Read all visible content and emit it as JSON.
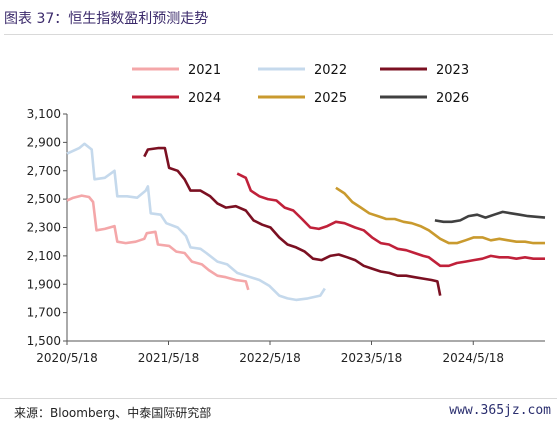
{
  "figure": {
    "title": "图表 37：恒生指数盈利预测走势",
    "source": "来源：Bloomberg、中泰国际研究部",
    "watermark": "www.365jz.com"
  },
  "colors": {
    "2021": "#f4a7a9",
    "2022": "#c5d9ec",
    "2023": "#7b1022",
    "2024": "#c0213a",
    "2025": "#c99a2e",
    "2026": "#404040"
  },
  "chart_data": {
    "type": "line",
    "title": "",
    "xlabel": "",
    "ylabel": "",
    "x_range": [
      "2020-05-18",
      "2025-01-31"
    ],
    "x_ticks": [
      "2020/5/18",
      "2021/5/18",
      "2022/5/18",
      "2023/5/18",
      "2024/5/18"
    ],
    "y_ticks": [
      "1,500",
      "1,700",
      "1,900",
      "2,100",
      "2,300",
      "2,500",
      "2,700",
      "2,900",
      "3,100"
    ],
    "ylim": [
      1500,
      3100
    ],
    "grid": false,
    "legend_position": "top",
    "series": [
      {
        "name": "2021",
        "points": [
          [
            "2020-05-18",
            2490
          ],
          [
            "2020-06-10",
            2510
          ],
          [
            "2020-07-10",
            2525
          ],
          [
            "2020-08-05",
            2515
          ],
          [
            "2020-08-20",
            2480
          ],
          [
            "2020-09-01",
            2280
          ],
          [
            "2020-10-01",
            2290
          ],
          [
            "2020-11-05",
            2310
          ],
          [
            "2020-11-15",
            2200
          ],
          [
            "2020-12-15",
            2190
          ],
          [
            "2021-01-20",
            2200
          ],
          [
            "2021-02-20",
            2220
          ],
          [
            "2021-03-01",
            2260
          ],
          [
            "2021-04-01",
            2270
          ],
          [
            "2021-04-10",
            2180
          ],
          [
            "2021-05-20",
            2170
          ],
          [
            "2021-06-15",
            2130
          ],
          [
            "2021-07-15",
            2120
          ],
          [
            "2021-08-10",
            2060
          ],
          [
            "2021-09-15",
            2040
          ],
          [
            "2021-10-10",
            2000
          ],
          [
            "2021-11-10",
            1960
          ],
          [
            "2021-12-10",
            1950
          ],
          [
            "2022-01-15",
            1930
          ],
          [
            "2022-02-20",
            1920
          ],
          [
            "2022-03-01",
            1860
          ]
        ]
      },
      {
        "name": "2022",
        "points": [
          [
            "2020-05-18",
            2820
          ],
          [
            "2020-07-01",
            2860
          ],
          [
            "2020-07-20",
            2890
          ],
          [
            "2020-08-15",
            2850
          ],
          [
            "2020-08-25",
            2640
          ],
          [
            "2020-10-01",
            2650
          ],
          [
            "2020-11-05",
            2700
          ],
          [
            "2020-11-15",
            2520
          ],
          [
            "2020-12-20",
            2520
          ],
          [
            "2021-01-25",
            2510
          ],
          [
            "2021-02-25",
            2560
          ],
          [
            "2021-03-05",
            2590
          ],
          [
            "2021-03-15",
            2400
          ],
          [
            "2021-04-20",
            2390
          ],
          [
            "2021-05-10",
            2330
          ],
          [
            "2021-06-20",
            2300
          ],
          [
            "2021-07-20",
            2240
          ],
          [
            "2021-08-05",
            2160
          ],
          [
            "2021-09-10",
            2150
          ],
          [
            "2021-10-01",
            2120
          ],
          [
            "2021-11-10",
            2060
          ],
          [
            "2021-12-15",
            2040
          ],
          [
            "2022-01-20",
            1980
          ],
          [
            "2022-02-20",
            1960
          ],
          [
            "2022-04-10",
            1930
          ],
          [
            "2022-05-15",
            1890
          ],
          [
            "2022-06-20",
            1820
          ],
          [
            "2022-07-20",
            1800
          ],
          [
            "2022-08-20",
            1790
          ],
          [
            "2022-10-01",
            1800
          ],
          [
            "2022-11-15",
            1820
          ],
          [
            "2022-12-01",
            1870
          ]
        ]
      },
      {
        "name": "2023",
        "points": [
          [
            "2021-02-20",
            2800
          ],
          [
            "2021-03-05",
            2850
          ],
          [
            "2021-04-10",
            2860
          ],
          [
            "2021-05-05",
            2860
          ],
          [
            "2021-05-20",
            2720
          ],
          [
            "2021-06-20",
            2700
          ],
          [
            "2021-07-15",
            2640
          ],
          [
            "2021-08-05",
            2560
          ],
          [
            "2021-09-10",
            2560
          ],
          [
            "2021-10-15",
            2520
          ],
          [
            "2021-11-10",
            2470
          ],
          [
            "2021-12-10",
            2440
          ],
          [
            "2022-01-15",
            2450
          ],
          [
            "2022-02-20",
            2420
          ],
          [
            "2022-03-20",
            2350
          ],
          [
            "2022-04-20",
            2320
          ],
          [
            "2022-05-20",
            2300
          ],
          [
            "2022-06-20",
            2230
          ],
          [
            "2022-07-20",
            2180
          ],
          [
            "2022-08-20",
            2160
          ],
          [
            "2022-09-20",
            2130
          ],
          [
            "2022-10-20",
            2080
          ],
          [
            "2022-11-20",
            2070
          ],
          [
            "2022-12-20",
            2100
          ],
          [
            "2023-01-20",
            2110
          ],
          [
            "2023-02-20",
            2090
          ],
          [
            "2023-03-20",
            2070
          ],
          [
            "2023-04-20",
            2030
          ],
          [
            "2023-05-20",
            2010
          ],
          [
            "2023-06-20",
            1990
          ],
          [
            "2023-07-20",
            1980
          ],
          [
            "2023-08-20",
            1960
          ],
          [
            "2023-09-20",
            1960
          ],
          [
            "2023-10-20",
            1950
          ],
          [
            "2023-11-20",
            1940
          ],
          [
            "2023-12-20",
            1930
          ],
          [
            "2024-01-10",
            1920
          ],
          [
            "2024-01-20",
            1820
          ]
        ]
      },
      {
        "name": "2024",
        "points": [
          [
            "2022-01-20",
            2680
          ],
          [
            "2022-02-20",
            2650
          ],
          [
            "2022-03-10",
            2560
          ],
          [
            "2022-04-10",
            2520
          ],
          [
            "2022-05-10",
            2500
          ],
          [
            "2022-06-10",
            2490
          ],
          [
            "2022-07-10",
            2440
          ],
          [
            "2022-08-10",
            2420
          ],
          [
            "2022-09-10",
            2360
          ],
          [
            "2022-10-10",
            2300
          ],
          [
            "2022-11-10",
            2290
          ],
          [
            "2022-12-10",
            2310
          ],
          [
            "2023-01-10",
            2340
          ],
          [
            "2023-02-10",
            2330
          ],
          [
            "2023-03-20",
            2300
          ],
          [
            "2023-04-20",
            2280
          ],
          [
            "2023-05-20",
            2230
          ],
          [
            "2023-06-20",
            2190
          ],
          [
            "2023-07-20",
            2180
          ],
          [
            "2023-08-20",
            2150
          ],
          [
            "2023-09-20",
            2140
          ],
          [
            "2023-10-20",
            2120
          ],
          [
            "2023-11-20",
            2100
          ],
          [
            "2023-12-10",
            2090
          ],
          [
            "2024-01-20",
            2030
          ],
          [
            "2024-02-20",
            2030
          ],
          [
            "2024-03-20",
            2050
          ],
          [
            "2024-04-20",
            2060
          ],
          [
            "2024-05-20",
            2070
          ],
          [
            "2024-06-20",
            2080
          ],
          [
            "2024-07-20",
            2100
          ],
          [
            "2024-08-20",
            2090
          ],
          [
            "2024-09-20",
            2090
          ],
          [
            "2024-10-20",
            2080
          ],
          [
            "2024-11-20",
            2090
          ],
          [
            "2024-12-20",
            2080
          ],
          [
            "2025-01-31",
            2080
          ]
        ]
      },
      {
        "name": "2025",
        "points": [
          [
            "2023-01-10",
            2580
          ],
          [
            "2023-02-10",
            2540
          ],
          [
            "2023-03-10",
            2480
          ],
          [
            "2023-04-10",
            2440
          ],
          [
            "2023-05-10",
            2400
          ],
          [
            "2023-06-10",
            2380
          ],
          [
            "2023-07-10",
            2360
          ],
          [
            "2023-08-10",
            2360
          ],
          [
            "2023-09-10",
            2340
          ],
          [
            "2023-10-10",
            2330
          ],
          [
            "2023-11-10",
            2310
          ],
          [
            "2023-12-10",
            2280
          ],
          [
            "2024-01-20",
            2220
          ],
          [
            "2024-02-20",
            2190
          ],
          [
            "2024-03-20",
            2190
          ],
          [
            "2024-04-20",
            2210
          ],
          [
            "2024-05-20",
            2230
          ],
          [
            "2024-06-20",
            2230
          ],
          [
            "2024-07-20",
            2210
          ],
          [
            "2024-08-20",
            2220
          ],
          [
            "2024-09-20",
            2210
          ],
          [
            "2024-10-20",
            2200
          ],
          [
            "2024-11-20",
            2200
          ],
          [
            "2024-12-20",
            2190
          ],
          [
            "2025-01-31",
            2190
          ]
        ]
      },
      {
        "name": "2026",
        "points": [
          [
            "2024-01-01",
            2350
          ],
          [
            "2024-02-01",
            2340
          ],
          [
            "2024-03-01",
            2340
          ],
          [
            "2024-04-01",
            2350
          ],
          [
            "2024-05-01",
            2380
          ],
          [
            "2024-06-01",
            2390
          ],
          [
            "2024-07-01",
            2370
          ],
          [
            "2024-08-01",
            2390
          ],
          [
            "2024-09-01",
            2410
          ],
          [
            "2024-10-01",
            2400
          ],
          [
            "2024-11-01",
            2390
          ],
          [
            "2024-12-01",
            2380
          ],
          [
            "2025-01-31",
            2370
          ]
        ]
      }
    ]
  }
}
